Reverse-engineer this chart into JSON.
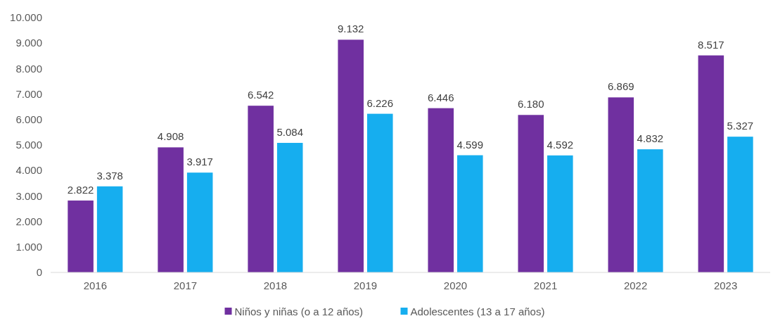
{
  "chart_data": {
    "type": "bar",
    "categories": [
      "2016",
      "2017",
      "2018",
      "2019",
      "2020",
      "2021",
      "2022",
      "2023"
    ],
    "series": [
      {
        "name": "Niños y niñas (o a 12 años)",
        "color": "#7030a0",
        "values": [
          2822,
          4908,
          6542,
          9132,
          6446,
          6180,
          6869,
          8517
        ],
        "value_labels": [
          "2.822",
          "4.908",
          "6.542",
          "9.132",
          "6.446",
          "6.180",
          "6.869",
          "8.517"
        ]
      },
      {
        "name": "Adolescentes (13 a 17 años)",
        "color": "#16aeef",
        "values": [
          3378,
          3917,
          5084,
          6226,
          4599,
          4592,
          4832,
          5327
        ],
        "value_labels": [
          "3.378",
          "3.917",
          "5.084",
          "6.226",
          "4.599",
          "4.592",
          "4.832",
          "5.327"
        ]
      }
    ],
    "ylim": [
      0,
      10000
    ],
    "yticks": [
      0,
      {
        "value": 1000,
        "label": "1.000"
      },
      {
        "value": 2000,
        "label": "2.000"
      },
      {
        "value": 3000,
        "label": "3.000"
      },
      {
        "value": 4000,
        "label": "4.000"
      },
      {
        "value": 5000,
        "label": "5.000"
      },
      {
        "value": 6000,
        "label": "6.000"
      },
      {
        "value": 7000,
        "label": "7.000"
      },
      {
        "value": 8000,
        "label": "8.000"
      },
      {
        "value": 9000,
        "label": "9.000"
      },
      {
        "value": 10000,
        "label": "10.000"
      }
    ],
    "grid": false,
    "legend": "bottom"
  }
}
